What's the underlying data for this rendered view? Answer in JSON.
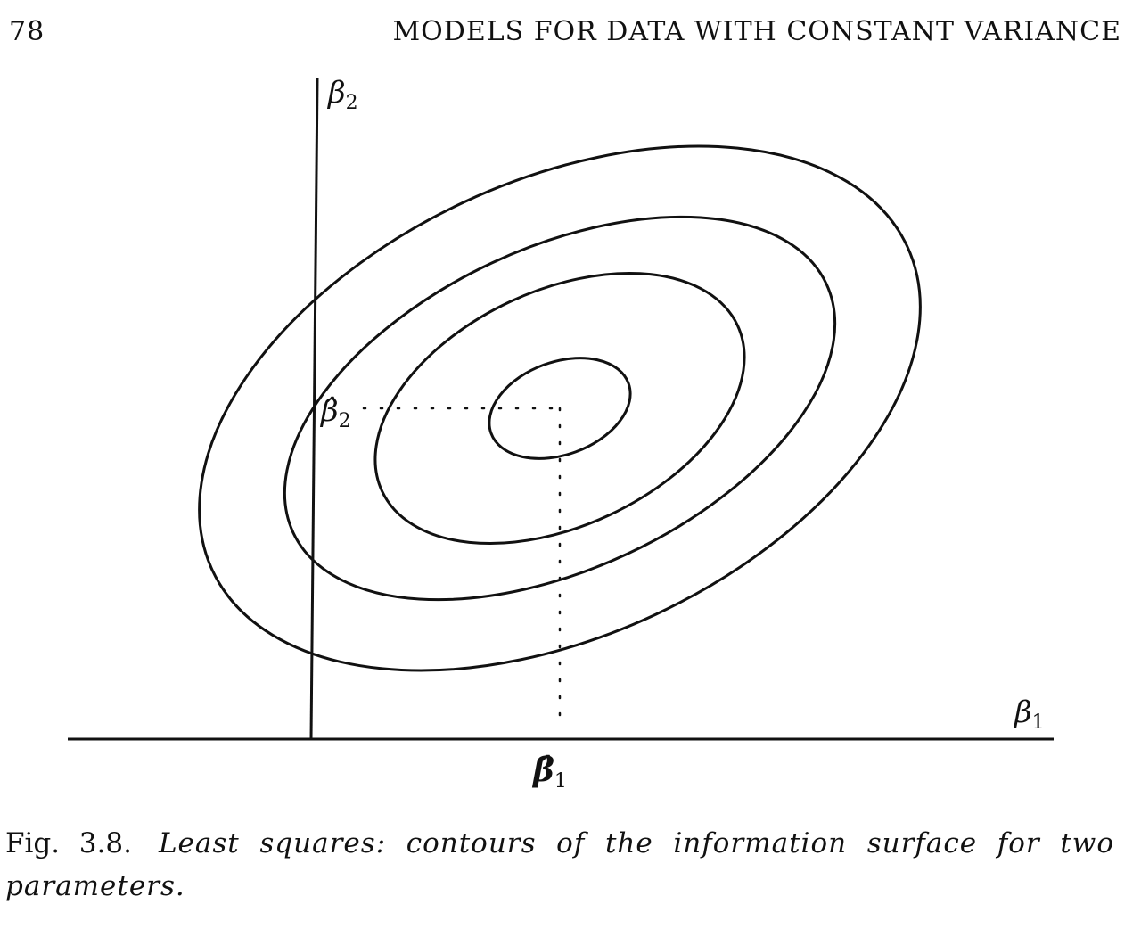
{
  "header": {
    "page_number": "78",
    "running_head": "MODELS FOR DATA WITH CONSTANT VARIANCE"
  },
  "figure": {
    "axis_labels": {
      "beta1_symbol": "β",
      "beta1_subscript": "1",
      "beta2_symbol": "β",
      "beta2_subscript": "2"
    },
    "estimate_labels": {
      "beta1_hat_symbol": "β̂",
      "beta1_hat_subscript": "1",
      "beta2_hat_symbol": "β̂",
      "beta2_hat_subscript": "2"
    },
    "contour_count": 4
  },
  "caption": {
    "label": "Fig. 3.8.",
    "text": "Least squares: contours of the information surface for two parameters."
  }
}
